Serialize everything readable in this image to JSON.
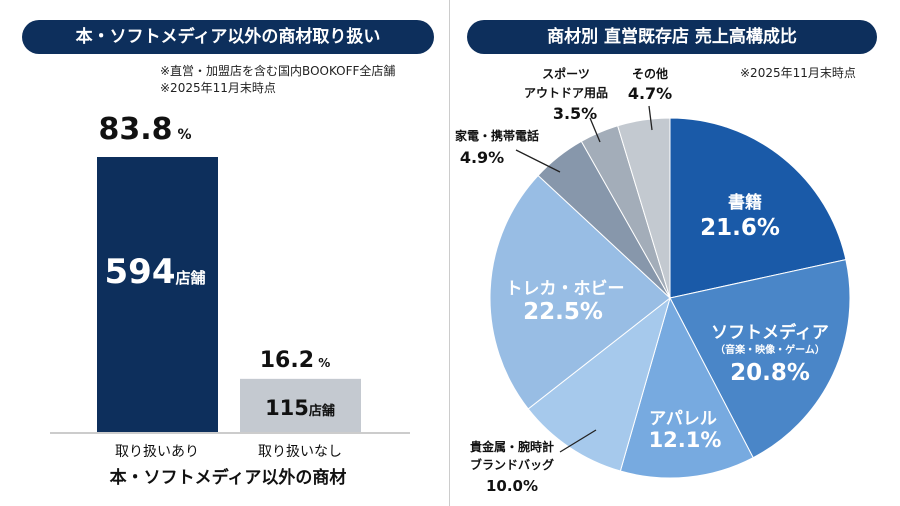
{
  "chart_data": [
    {
      "type": "bar",
      "title": "本・ソフトメディア以外の商材取り扱い",
      "notes": [
        "※直営・加盟店を含む国内BOOKOFF全店舗",
        "※2025年11月末時点"
      ],
      "categories": [
        "取り扱いあり",
        "取り扱いなし"
      ],
      "xlabel": "本・ソフトメディア以外の商材",
      "values": [
        594,
        115
      ],
      "value_unit": "店舗",
      "percents": [
        "83.8",
        "16.2"
      ],
      "percent_unit": "%",
      "colors": [
        "#0d2f5c",
        "#c4c9d0"
      ]
    },
    {
      "type": "pie",
      "title": "商材別 直営既存店 売上高構成比",
      "note": "※2025年11月末時点",
      "slices": [
        {
          "label": "書籍",
          "value": 21.6,
          "display": "21.6%",
          "color": "#1a5aa8"
        },
        {
          "label": "ソフトメディア",
          "sub": "（音楽・映像・ゲーム）",
          "value": 20.8,
          "display": "20.8%",
          "color": "#4a86c8"
        },
        {
          "label": "アパレル",
          "value": 12.1,
          "display": "12.1%",
          "color": "#77aae0"
        },
        {
          "label": "貴金属・腕時計",
          "label2": "ブランドバッグ",
          "value": 10.0,
          "display": "10.0%",
          "color": "#a6c9ec"
        },
        {
          "label": "トレカ・ホビー",
          "value": 22.5,
          "display": "22.5%",
          "color": "#98bde4"
        },
        {
          "label": "家電・携帯電話",
          "value": 4.9,
          "display": "4.9%",
          "color": "#8797ab"
        },
        {
          "label": "スポーツ",
          "label2": "アウトドア用品",
          "value": 3.5,
          "display": "3.5%",
          "color": "#a3adb9"
        },
        {
          "label": "その他",
          "value": 4.7,
          "display": "4.7%",
          "color": "#c3c9d0"
        }
      ]
    }
  ]
}
